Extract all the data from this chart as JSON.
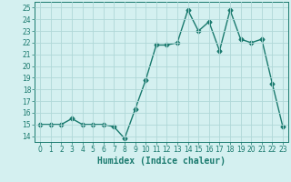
{
  "x": [
    0,
    1,
    2,
    3,
    4,
    5,
    6,
    7,
    8,
    9,
    10,
    11,
    12,
    13,
    14,
    15,
    16,
    17,
    18,
    19,
    20,
    21,
    22,
    23
  ],
  "y": [
    15.0,
    15.0,
    15.0,
    15.5,
    15.0,
    15.0,
    15.0,
    14.8,
    13.8,
    16.3,
    18.8,
    21.8,
    21.8,
    22.0,
    24.8,
    23.0,
    23.8,
    21.3,
    24.8,
    22.3,
    22.0,
    22.3,
    18.5,
    14.8
  ],
  "line_color": "#1a7a6e",
  "bg_color": "#d4f0f0",
  "grid_color": "#b0d8d8",
  "xlabel": "Humidex (Indice chaleur)",
  "yticks": [
    14,
    15,
    16,
    17,
    18,
    19,
    20,
    21,
    22,
    23,
    24,
    25
  ],
  "xtick_labels": [
    "0",
    "1",
    "2",
    "3",
    "4",
    "5",
    "6",
    "7",
    "8",
    "9",
    "10",
    "11",
    "12",
    "13",
    "14",
    "15",
    "16",
    "17",
    "18",
    "19",
    "20",
    "21",
    "22",
    "23"
  ],
  "ylim": [
    13.5,
    25.5
  ],
  "xlim": [
    -0.5,
    23.5
  ],
  "marker": "D",
  "marker_size": 2.5,
  "line_width": 1.0,
  "tick_color": "#1a7a6e",
  "tick_fontsize": 5.5,
  "xlabel_fontsize": 7,
  "axis_color": "#1a7a6e"
}
